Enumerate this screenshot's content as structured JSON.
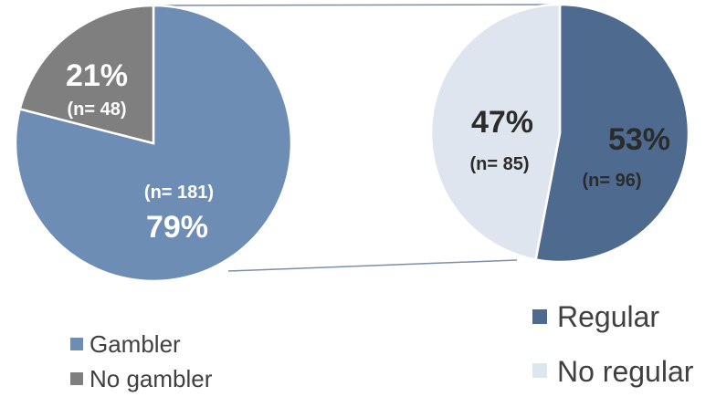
{
  "chart_data": [
    {
      "type": "pie",
      "categories": [
        "Gambler",
        "No gambler"
      ],
      "values": [
        79,
        21
      ],
      "labels": [
        {
          "pct": "79%",
          "n": "(n= 181)"
        },
        {
          "pct": "21%",
          "n": "(n= 48)"
        }
      ],
      "colors": [
        "#6E8DB4",
        "#7F7F7F"
      ],
      "legend": {
        "placement": "bottom-left",
        "entries": [
          "Gambler",
          "No gambler"
        ]
      }
    },
    {
      "type": "pie",
      "categories": [
        "Regular",
        "No regular"
      ],
      "values": [
        53,
        47
      ],
      "labels": [
        {
          "pct": "53%",
          "n": "(n= 96)"
        },
        {
          "pct": "47%",
          "n": "(n= 85)"
        }
      ],
      "colors": [
        "#4E6A8E",
        "#DFE5EF"
      ],
      "legend": {
        "placement": "bottom-right",
        "entries": [
          "Regular",
          "No regular"
        ]
      }
    }
  ],
  "colors": {
    "connector": "#7A8FA8",
    "label_light": "#FFFFFF",
    "label_dark": "#2B2B2B"
  }
}
